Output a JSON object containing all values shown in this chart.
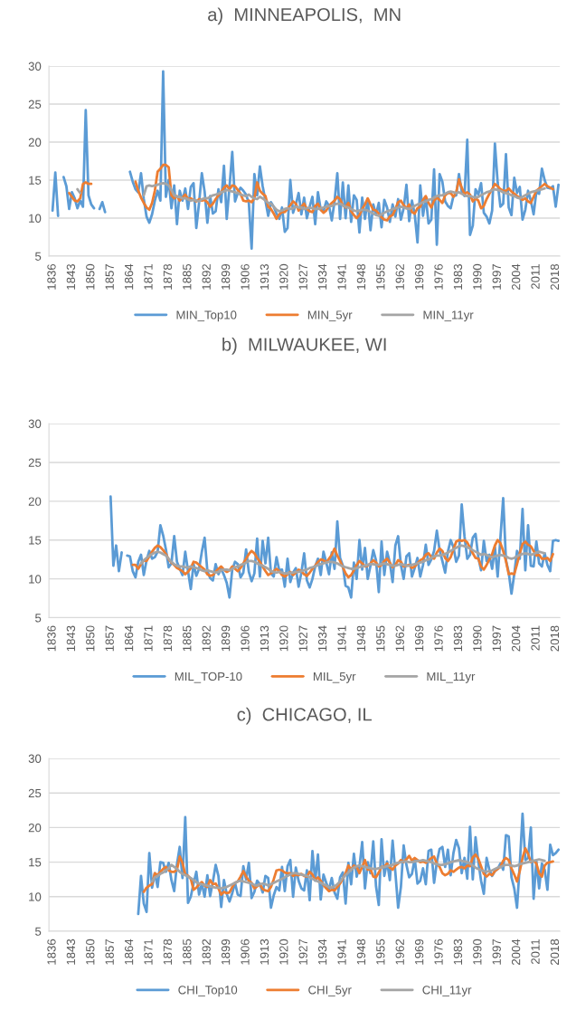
{
  "chart_data": [
    {
      "type": "line",
      "title": "a)  MINNEAPOLIS,  MN",
      "grid": "y",
      "legend": "bottom",
      "x": [
        1836,
        1837,
        1838,
        1839,
        1840,
        1841,
        1842,
        1843,
        1844,
        1845,
        1846,
        1847,
        1848,
        1849,
        1850,
        1851,
        1852,
        1853,
        1854,
        1855,
        1856,
        1857,
        1858,
        1859,
        1860,
        1861,
        1862,
        1863,
        1864,
        1865,
        1866,
        1867,
        1868,
        1869,
        1870,
        1871,
        1872,
        1873,
        1874,
        1875,
        1876,
        1877,
        1878,
        1879,
        1880,
        1881,
        1882,
        1883,
        1884,
        1885,
        1886,
        1887,
        1888,
        1889,
        1890,
        1891,
        1892,
        1893,
        1894,
        1895,
        1896,
        1897,
        1898,
        1899,
        1900,
        1901,
        1902,
        1903,
        1904,
        1905,
        1906,
        1907,
        1908,
        1909,
        1910,
        1911,
        1912,
        1913,
        1914,
        1915,
        1916,
        1917,
        1918,
        1919,
        1920,
        1921,
        1922,
        1923,
        1924,
        1925,
        1926,
        1927,
        1928,
        1929,
        1930,
        1931,
        1932,
        1933,
        1934,
        1935,
        1936,
        1937,
        1938,
        1939,
        1940,
        1941,
        1942,
        1943,
        1944,
        1945,
        1946,
        1947,
        1948,
        1949,
        1950,
        1951,
        1952,
        1953,
        1954,
        1955,
        1956,
        1957,
        1958,
        1959,
        1960,
        1961,
        1962,
        1963,
        1964,
        1965,
        1966,
        1967,
        1968,
        1969,
        1970,
        1971,
        1972,
        1973,
        1974,
        1975,
        1976,
        1977,
        1978,
        1979,
        1980,
        1981,
        1982,
        1983,
        1984,
        1985,
        1986,
        1987,
        1988,
        1989,
        1990,
        1991,
        1992,
        1993,
        1994,
        1995,
        1996,
        1997,
        1998,
        1999,
        2000,
        2001,
        2002,
        2003,
        2004,
        2005,
        2006,
        2007,
        2008,
        2009,
        2010,
        2011,
        2012,
        2013,
        2014,
        2015,
        2016,
        2017,
        2018,
        2019
      ],
      "xlim": [
        1834.7,
        2019.5
      ],
      "xticks": [
        1836,
        1843,
        1850,
        1857,
        1864,
        1871,
        1878,
        1885,
        1892,
        1899,
        1906,
        1913,
        1920,
        1927,
        1934,
        1941,
        1948,
        1955,
        1962,
        1969,
        1976,
        1983,
        1990,
        1997,
        2004,
        2011,
        2018
      ],
      "ylim": [
        5,
        30
      ],
      "yticks": [
        5,
        10,
        15,
        20,
        25,
        30
      ],
      "series": [
        {
          "name": "MIN_Top10",
          "color": "#5b9bd5",
          "values": [
            11,
            16,
            10.3,
            null,
            15.4,
            14.2,
            11.2,
            13.4,
            12.6,
            11.3,
            12.3,
            11.5,
            24.2,
            13.0,
            11.8,
            11.3,
            null,
            11.2,
            12.1,
            10.8,
            null,
            null,
            null,
            null,
            null,
            null,
            null,
            null,
            16.1,
            14.8,
            13.8,
            13.4,
            15.9,
            12.5,
            10.2,
            9.4,
            10.5,
            12.3,
            13.6,
            12.3,
            29.3,
            12.8,
            15.0,
            11.3,
            14.3,
            9.2,
            13.6,
            12.3,
            13.9,
            11.2,
            14.1,
            14.6,
            8.7,
            12.0,
            15.9,
            13.5,
            9.4,
            12.9,
            10.6,
            10.9,
            13.8,
            12.1,
            16.9,
            9.9,
            14.1,
            18.7,
            12.2,
            13.3,
            14.0,
            13.6,
            13.1,
            12.0,
            6.0,
            15.8,
            13.0,
            16.8,
            14.2,
            12.3,
            10.3,
            12.1,
            11.5,
            10.6,
            9.9,
            11.4,
            8.2,
            8.7,
            15.0,
            10.7,
            11.8,
            13.3,
            10.5,
            12.7,
            10.0,
            11.5,
            12.8,
            9.2,
            13.4,
            11.1,
            10.9,
            12.2,
            11.6,
            9.7,
            12.2,
            15.9,
            9.9,
            14.7,
            10.0,
            14.3,
            9.5,
            13.0,
            12.4,
            8.1,
            12.7,
            9.9,
            12.5,
            8.4,
            11.8,
            10.5,
            12.0,
            8.8,
            12.4,
            11.4,
            9.5,
            11.8,
            10.2,
            12.5,
            9.8,
            11.3,
            14.4,
            9.6,
            12.3,
            10.5,
            6.8,
            14.3,
            10.3,
            12.8,
            9.3,
            9.8,
            16.4,
            6.5,
            15.8,
            14.8,
            12.2,
            11.6,
            11.3,
            12.9,
            13.0,
            15.8,
            13.5,
            12.9,
            20.3,
            7.8,
            9.0,
            13.8,
            13.1,
            14.6,
            10.7,
            10.2,
            9.3,
            11.0,
            19.8,
            14.7,
            11.5,
            11.9,
            18.4,
            11.4,
            10.4,
            15.3,
            13.3,
            14.1,
            9.8,
            11.1,
            13.6,
            12.3,
            10.5,
            13.5,
            13.2,
            16.5,
            15.0,
            14.0,
            13.9,
            14.2,
            11.5,
            14.4
          ]
        },
        {
          "name": "MIN_5yr",
          "color": "#ed7d31",
          "values": [
            null,
            null,
            null,
            null,
            null,
            null,
            13.3,
            12.8,
            12.3,
            12.2,
            12.6,
            14.5,
            14.7,
            14.5,
            14.5,
            null,
            null,
            null,
            null,
            null,
            null,
            null,
            null,
            null,
            null,
            null,
            null,
            null,
            null,
            null,
            14.8,
            13.6,
            12.7,
            12.0,
            11.4,
            11.1,
            12.0,
            13.6,
            16.1,
            16.5,
            17.0,
            17.0,
            16.7,
            13.0,
            12.6,
            12.9,
            12.3,
            12.7,
            13.1,
            12.5,
            12.6,
            12.4,
            12.2,
            12.5,
            12.3,
            12.4,
            12.1,
            11.5,
            11.9,
            12.5,
            13.0,
            13.4,
            14.0,
            14.3,
            13.8,
            14.3,
            14.2,
            13.7,
            13.2,
            12.3,
            12.2,
            12.3,
            12.1,
            12.6,
            14.7,
            13.6,
            13.2,
            12.9,
            11.5,
            11.2,
            10.6,
            9.9,
            10.5,
            10.8,
            10.8,
            11.2,
            11.7,
            12.2,
            11.9,
            11.0,
            11.5,
            11.9,
            11.2,
            10.9,
            10.8,
            11.6,
            11.9,
            11.1,
            10.7,
            11.0,
            11.6,
            12.0,
            12.3,
            12.8,
            12.5,
            11.7,
            11.4,
            12.0,
            10.9,
            10.4,
            10.0,
            10.4,
            11.2,
            11.8,
            12.6,
            11.8,
            11.1,
            11.0,
            10.6,
            10.1,
            9.8,
            9.7,
            10.2,
            10.4,
            11.2,
            12.1,
            12.3,
            11.7,
            11.3,
            11.8,
            10.8,
            10.6,
            11.3,
            11.5,
            12.4,
            12.9,
            12.0,
            11.4,
            12.3,
            12.7,
            12.4,
            12.0,
            13.0,
            13.3,
            13.3,
            12.8,
            13.4,
            15.1,
            14.0,
            13.2,
            13.4,
            13.1,
            12.2,
            12.6,
            12.3,
            11.3,
            11.6,
            12.5,
            13.2,
            13.8,
            14.5,
            14.2,
            13.8,
            13.6,
            13.6,
            13.9,
            13.5,
            13.2,
            12.9,
            12.7,
            12.4,
            12.6,
            12.2,
            12.0,
            12.8,
            13.6,
            13.9,
            14.2,
            14.5,
            14.2,
            14.0,
            13.8,
            null,
            null
          ]
        },
        {
          "name": "MIN_11yr",
          "color": "#a5a5a5",
          "values": [
            null,
            null,
            null,
            null,
            null,
            null,
            null,
            null,
            null,
            13.8,
            13.3,
            null,
            null,
            null,
            null,
            null,
            null,
            null,
            null,
            null,
            null,
            null,
            null,
            null,
            null,
            null,
            null,
            null,
            null,
            null,
            null,
            null,
            null,
            13.0,
            14.2,
            14.3,
            14.2,
            14.3,
            14.4,
            14.5,
            14.6,
            14.5,
            14.3,
            13.7,
            13.0,
            12.8,
            12.8,
            12.6,
            12.6,
            12.5,
            12.3,
            12.4,
            12.3,
            12.2,
            12.5,
            12.6,
            12.6,
            12.8,
            13.0,
            13.1,
            13.2,
            13.4,
            13.5,
            13.7,
            13.6,
            13.5,
            13.4,
            13.3,
            13.1,
            13.0,
            12.9,
            13.1,
            12.8,
            12.6,
            12.5,
            12.8,
            12.6,
            12.3,
            12.0,
            11.9,
            11.5,
            11.1,
            10.9,
            11.0,
            11.2,
            11.3,
            11.2,
            11.3,
            11.5,
            11.4,
            11.4,
            11.2,
            11.3,
            11.4,
            11.3,
            11.2,
            11.2,
            11.3,
            11.4,
            11.5,
            11.6,
            11.6,
            11.8,
            11.9,
            11.9,
            11.7,
            11.5,
            11.4,
            11.2,
            11.0,
            10.9,
            11.0,
            11.1,
            11.1,
            11.0,
            10.8,
            10.6,
            10.4,
            10.3,
            10.5,
            10.7,
            10.9,
            11.0,
            11.2,
            11.3,
            11.4,
            11.5,
            11.4,
            11.3,
            11.2,
            11.4,
            11.6,
            11.8,
            11.9,
            12.1,
            12.2,
            12.4,
            12.5,
            12.7,
            12.9,
            13.0,
            13.0,
            13.2,
            13.4,
            13.5,
            13.4,
            13.3,
            13.4,
            13.2,
            13.0,
            12.9,
            12.9,
            12.8,
            12.7,
            12.8,
            13.0,
            13.2,
            13.4,
            13.5,
            13.7,
            13.8,
            13.7,
            13.6,
            13.4,
            13.3,
            13.2,
            13.0,
            12.9,
            12.7,
            12.6,
            12.8,
            13.0,
            13.2,
            13.4,
            13.5,
            13.6,
            13.7,
            13.8,
            13.9,
            null,
            null,
            null,
            null,
            null
          ]
        }
      ]
    },
    {
      "type": "line",
      "title": "b)  MILWAUKEE, WI",
      "grid": "y",
      "legend": "bottom",
      "x": [
        1857,
        1858,
        1859,
        1860,
        1861,
        1862,
        1863,
        1864,
        1865,
        1866,
        1867,
        1868,
        1869,
        1870,
        1871,
        1872,
        1873,
        1874,
        1875,
        1876,
        1877,
        1878,
        1879,
        1880,
        1881,
        1882,
        1883,
        1884,
        1885,
        1886,
        1887,
        1888,
        1889,
        1890,
        1891,
        1892,
        1893,
        1894,
        1895,
        1896,
        1897,
        1898,
        1899,
        1900,
        1901,
        1902,
        1903,
        1904,
        1905,
        1906,
        1907,
        1908,
        1909,
        1910,
        1911,
        1912,
        1913,
        1914,
        1915,
        1916,
        1917,
        1918,
        1919,
        1920,
        1921,
        1922,
        1923,
        1924,
        1925,
        1926,
        1927,
        1928,
        1929,
        1930,
        1931,
        1932,
        1933,
        1934,
        1935,
        1936,
        1937,
        1938,
        1939,
        1940,
        1941,
        1942,
        1943,
        1944,
        1945,
        1946,
        1947,
        1948,
        1949,
        1950,
        1951,
        1952,
        1953,
        1954,
        1955,
        1956,
        1957,
        1958,
        1959,
        1960,
        1961,
        1962,
        1963,
        1964,
        1965,
        1966,
        1967,
        1968,
        1969,
        1970,
        1971,
        1972,
        1973,
        1974,
        1975,
        1976,
        1977,
        1978,
        1979,
        1980,
        1981,
        1982,
        1983,
        1984,
        1985,
        1986,
        1987,
        1988,
        1989,
        1990,
        1991,
        1992,
        1993,
        1994,
        1995,
        1996,
        1997,
        1998,
        1999,
        2000,
        2001,
        2002,
        2003,
        2004,
        2005,
        2006,
        2007,
        2008,
        2009,
        2010,
        2011,
        2012,
        2013,
        2014,
        2015,
        2016,
        2017,
        2018,
        2019
      ],
      "xlim": [
        1834.7,
        2019.5
      ],
      "xticks": [
        1836,
        1843,
        1850,
        1857,
        1864,
        1871,
        1878,
        1885,
        1892,
        1899,
        1906,
        1913,
        1920,
        1927,
        1934,
        1941,
        1948,
        1955,
        1962,
        1969,
        1976,
        1983,
        1990,
        1997,
        2004,
        2011,
        2018
      ],
      "ylim": [
        5,
        30
      ],
      "yticks": [
        5,
        10,
        15,
        20,
        25,
        30
      ],
      "series": [
        {
          "name": "MIL_TOP-10",
          "color": "#5b9bd5",
          "values": [
            20.6,
            11.7,
            14.3,
            11.0,
            13.4,
            null,
            13.0,
            12.9,
            11.0,
            10.2,
            12.2,
            13.1,
            10.5,
            12.4,
            13.6,
            12.6,
            12.8,
            13.5,
            16.9,
            15.6,
            13.8,
            11.5,
            12.0,
            15.5,
            12.2,
            11.3,
            10.5,
            13.5,
            11.0,
            8.7,
            11.9,
            10.4,
            11.3,
            13.5,
            15.3,
            11.0,
            10.1,
            9.8,
            11.9,
            10.6,
            11.3,
            10.5,
            9.5,
            7.6,
            11.2,
            12.2,
            11.9,
            10.2,
            10.8,
            13.8,
            10.9,
            9.7,
            10.7,
            15.2,
            10.3,
            14.9,
            12.0,
            15.3,
            10.7,
            10.3,
            12.8,
            11.1,
            11.2,
            9.0,
            12.6,
            9.6,
            10.8,
            11.4,
            9.0,
            10.8,
            13.3,
            9.8,
            8.9,
            10.0,
            11.6,
            12.6,
            10.5,
            13.5,
            12.1,
            10.6,
            13.4,
            11.3,
            17.4,
            12.7,
            11.7,
            9.1,
            8.9,
            7.6,
            12.1,
            10.0,
            15.0,
            11.2,
            14.0,
            10.0,
            11.7,
            13.7,
            12.4,
            8.3,
            14.8,
            10.5,
            13.5,
            12.1,
            9.6,
            14.3,
            15.5,
            11.8,
            10.0,
            12.9,
            13.3,
            10.3,
            11.4,
            12.7,
            10.3,
            11.8,
            14.4,
            11.8,
            12.5,
            13.6,
            16.2,
            13.7,
            12.3,
            10.8,
            13.5,
            15.0,
            14.1,
            12.2,
            13.0,
            19.6,
            15.5,
            12.6,
            13.1,
            15.3,
            15.8,
            12.8,
            11.1,
            14.9,
            12.3,
            13.1,
            11.3,
            14.1,
            10.3,
            15.3,
            20.4,
            12.4,
            10.8,
            8.1,
            10.6,
            13.6,
            12.6,
            19.0,
            11.1,
            16.9,
            11.7,
            11.6,
            14.8,
            12.0,
            11.6,
            13.3,
            11.8,
            11.0,
            14.9,
            15.0,
            14.9
          ]
        },
        {
          "name": "MIL_5yr",
          "color": "#ed7d31",
          "values": [
            null,
            null,
            null,
            null,
            null,
            null,
            null,
            null,
            11.8,
            11.8,
            11.3,
            11.9,
            12.4,
            12.3,
            12.9,
            13.5,
            14.0,
            14.3,
            14.1,
            13.7,
            13.2,
            12.5,
            12.1,
            11.8,
            11.4,
            11.2,
            11.0,
            10.6,
            10.9,
            11.4,
            12.2,
            12.1,
            11.8,
            11.5,
            11.2,
            10.6,
            10.4,
            10.5,
            10.9,
            11.3,
            11.6,
            11.2,
            10.9,
            11.1,
            11.6,
            11.3,
            11.0,
            11.4,
            12.0,
            12.6,
            13.2,
            13.6,
            13.3,
            12.7,
            12.2,
            11.6,
            11.0,
            10.5,
            10.7,
            11.0,
            11.3,
            11.0,
            10.5,
            10.3,
            10.6,
            10.9,
            10.5,
            10.8,
            11.2,
            11.0,
            10.6,
            10.4,
            10.8,
            11.3,
            11.7,
            12.2,
            12.5,
            12.4,
            12.1,
            12.6,
            13.1,
            13.9,
            13.0,
            12.3,
            11.5,
            10.7,
            10.2,
            10.5,
            11.1,
            11.8,
            12.3,
            12.0,
            11.6,
            11.7,
            12.0,
            12.4,
            12.1,
            11.6,
            11.8,
            12.3,
            12.6,
            12.1,
            11.5,
            11.8,
            12.4,
            12.2,
            11.6,
            11.7,
            11.8,
            11.4,
            11.6,
            12.0,
            12.4,
            12.6,
            13.1,
            13.3,
            12.8,
            12.6,
            13.4,
            13.9,
            13.6,
            12.7,
            12.3,
            12.8,
            13.8,
            14.8,
            15.0,
            14.9,
            15.0,
            14.7,
            14.0,
            13.3,
            12.7,
            12.6,
            11.6,
            11.2,
            11.8,
            12.5,
            13.2,
            14.3,
            15.0,
            14.6,
            13.6,
            12.3,
            10.6,
            10.7,
            10.6,
            11.9,
            13.3,
            14.5,
            14.8,
            14.4,
            14.2,
            13.6,
            13.0,
            13.1,
            12.6,
            12.6,
            12.7,
            12.3,
            13.2,
            null,
            null
          ]
        },
        {
          "name": "MIL_11yr",
          "color": "#a5a5a5",
          "values": [
            null,
            null,
            null,
            null,
            null,
            null,
            null,
            null,
            null,
            null,
            null,
            12.0,
            12.4,
            12.7,
            13.0,
            13.2,
            13.4,
            13.5,
            13.4,
            13.2,
            13.0,
            12.6,
            12.2,
            11.9,
            11.7,
            11.6,
            11.6,
            11.5,
            11.5,
            11.6,
            11.5,
            11.4,
            11.3,
            11.1,
            11.0,
            11.1,
            11.0,
            10.9,
            10.8,
            10.9,
            11.1,
            11.2,
            11.2,
            11.1,
            11.3,
            11.5,
            11.6,
            11.8,
            11.9,
            12.1,
            12.3,
            12.3,
            12.2,
            12.0,
            11.8,
            11.7,
            11.5,
            11.3,
            11.0,
            10.9,
            10.8,
            10.9,
            10.8,
            10.7,
            10.7,
            10.8,
            10.8,
            10.9,
            10.9,
            11.0,
            11.1,
            11.2,
            11.4,
            11.5,
            11.6,
            11.8,
            11.9,
            12.0,
            12.1,
            12.2,
            12.2,
            12.1,
            12.0,
            11.8,
            11.6,
            11.5,
            11.4,
            11.3,
            11.3,
            11.4,
            11.5,
            11.6,
            11.7,
            11.8,
            11.9,
            11.9,
            11.8,
            11.8,
            11.9,
            12.0,
            11.9,
            11.8,
            11.7,
            11.7,
            11.8,
            11.9,
            11.8,
            11.7,
            11.7,
            11.8,
            11.9,
            12.0,
            12.1,
            12.2,
            12.4,
            12.5,
            12.7,
            12.9,
            13.0,
            13.0,
            13.1,
            13.2,
            13.4,
            13.6,
            13.8,
            14.0,
            14.2,
            14.3,
            14.2,
            14.1,
            13.9,
            13.7,
            13.5,
            13.3,
            13.1,
            13.2,
            13.1,
            12.9,
            12.8,
            12.9,
            13.0,
            13.1,
            13.0,
            12.9,
            12.7,
            12.6,
            12.7,
            12.9,
            13.1,
            13.2,
            13.3,
            13.2,
            13.1,
            13.2,
            13.4,
            13.5,
            13.4,
            13.3,
            null,
            null,
            null,
            null,
            null
          ]
        }
      ]
    },
    {
      "type": "line",
      "title": "c)  CHICAGO, IL",
      "grid": "y",
      "legend": "bottom",
      "x": [
        1867,
        1868,
        1869,
        1870,
        1871,
        1872,
        1873,
        1874,
        1875,
        1876,
        1877,
        1878,
        1879,
        1880,
        1881,
        1882,
        1883,
        1884,
        1885,
        1886,
        1887,
        1888,
        1889,
        1890,
        1891,
        1892,
        1893,
        1894,
        1895,
        1896,
        1897,
        1898,
        1899,
        1900,
        1901,
        1902,
        1903,
        1904,
        1905,
        1906,
        1907,
        1908,
        1909,
        1910,
        1911,
        1912,
        1913,
        1914,
        1915,
        1916,
        1917,
        1918,
        1919,
        1920,
        1921,
        1922,
        1923,
        1924,
        1925,
        1926,
        1927,
        1928,
        1929,
        1930,
        1931,
        1932,
        1933,
        1934,
        1935,
        1936,
        1937,
        1938,
        1939,
        1940,
        1941,
        1942,
        1943,
        1944,
        1945,
        1946,
        1947,
        1948,
        1949,
        1950,
        1951,
        1952,
        1953,
        1954,
        1955,
        1956,
        1957,
        1958,
        1959,
        1960,
        1961,
        1962,
        1963,
        1964,
        1965,
        1966,
        1967,
        1968,
        1969,
        1970,
        1971,
        1972,
        1973,
        1974,
        1975,
        1976,
        1977,
        1978,
        1979,
        1980,
        1981,
        1982,
        1983,
        1984,
        1985,
        1986,
        1987,
        1988,
        1989,
        1990,
        1991,
        1992,
        1993,
        1994,
        1995,
        1996,
        1997,
        1998,
        1999,
        2000,
        2001,
        2002,
        2003,
        2004,
        2005,
        2006,
        2007,
        2008,
        2009,
        2010,
        2011,
        2012,
        2013,
        2014,
        2015,
        2016,
        2017,
        2018,
        2019
      ],
      "xlim": [
        1834.7,
        2019.5
      ],
      "xticks": [
        1836,
        1843,
        1850,
        1857,
        1864,
        1871,
        1878,
        1885,
        1892,
        1899,
        1906,
        1913,
        1920,
        1927,
        1934,
        1941,
        1948,
        1955,
        1962,
        1969,
        1976,
        1983,
        1990,
        1997,
        2004,
        2011,
        2018
      ],
      "ylim": [
        5,
        30
      ],
      "yticks": [
        5,
        10,
        15,
        20,
        25,
        30
      ],
      "series": [
        {
          "name": "CHI_Top10",
          "color": "#5b9bd5",
          "values": [
            7.5,
            13.0,
            9.0,
            7.8,
            16.3,
            11.3,
            13.4,
            11.4,
            15.0,
            14.9,
            13.6,
            14.9,
            12.4,
            10.8,
            14.7,
            17.2,
            12.7,
            21.5,
            9.1,
            10.0,
            11.9,
            13.6,
            10.3,
            11.9,
            10.0,
            13.1,
            10.1,
            12.2,
            14.6,
            13.0,
            8.5,
            12.4,
            10.4,
            9.3,
            10.5,
            12.0,
            10.3,
            10.1,
            14.4,
            12.5,
            14.9,
            9.8,
            10.7,
            12.3,
            11.8,
            10.6,
            13.0,
            12.7,
            8.4,
            10.2,
            11.4,
            10.9,
            14.3,
            10.8,
            14.4,
            15.3,
            10.0,
            14.2,
            12.3,
            11.2,
            10.9,
            13.8,
            9.5,
            16.6,
            12.3,
            16.1,
            9.6,
            13.2,
            12.0,
            11.0,
            12.7,
            10.6,
            9.7,
            12.8,
            13.5,
            9.0,
            14.9,
            11.8,
            16.2,
            12.9,
            14.3,
            17.9,
            11.2,
            15.0,
            13.4,
            18.0,
            11.5,
            8.8,
            18.3,
            13.0,
            15.1,
            12.4,
            18.1,
            13.5,
            8.4,
            11.4,
            17.4,
            14.6,
            12.8,
            13.3,
            15.5,
            11.9,
            12.3,
            14.1,
            11.8,
            16.6,
            16.8,
            12.0,
            15.0,
            16.9,
            17.2,
            14.3,
            16.8,
            13.1,
            16.3,
            18.2,
            17.0,
            13.4,
            15.6,
            12.6,
            20.1,
            12.5,
            18.6,
            15.1,
            12.3,
            10.4,
            15.6,
            13.9,
            13.0,
            13.7,
            14.0,
            14.8,
            13.9,
            18.9,
            18.7,
            12.8,
            11.2,
            8.4,
            14.6,
            22.0,
            15.3,
            15.6,
            20.0,
            9.7,
            15.1,
            11.2,
            14.8,
            13.9,
            11.0,
            17.5,
            16.0,
            16.3,
            16.8
          ]
        },
        {
          "name": "CHI_5yr",
          "color": "#ed7d31",
          "values": [
            null,
            null,
            10.7,
            11.3,
            11.6,
            11.8,
            13.4,
            13.1,
            13.6,
            14.0,
            14.3,
            13.8,
            13.6,
            13.6,
            13.9,
            15.8,
            14.9,
            13.2,
            13.0,
            12.6,
            11.0,
            11.3,
            11.8,
            12.1,
            11.6,
            11.4,
            12.4,
            11.8,
            11.9,
            11.2,
            10.3,
            10.7,
            10.5,
            10.6,
            11.4,
            12.0,
            12.2,
            12.9,
            13.7,
            12.9,
            12.3,
            12.0,
            11.2,
            11.5,
            11.8,
            11.1,
            10.9,
            10.8,
            11.4,
            12.5,
            13.8,
            13.9,
            13.8,
            13.5,
            13.4,
            13.4,
            13.0,
            13.2,
            13.1,
            13.3,
            13.0,
            12.9,
            13.6,
            13.2,
            12.4,
            12.8,
            12.3,
            11.7,
            11.2,
            10.8,
            11.0,
            10.9,
            11.4,
            11.9,
            12.6,
            13.4,
            14.5,
            13.9,
            14.5,
            14.3,
            13.4,
            14.3,
            15.3,
            13.9,
            14.0,
            12.9,
            12.8,
            13.5,
            14.3,
            14.3,
            14.8,
            14.2,
            13.9,
            14.5,
            14.8,
            15.3,
            15.0,
            15.4,
            15.9,
            15.2,
            15.6,
            15.3,
            15.0,
            15.1,
            14.9,
            15.2,
            15.6,
            15.8,
            14.8,
            14.3,
            13.4,
            13.1,
            13.3,
            13.8,
            13.6,
            13.9,
            14.2,
            14.3,
            14.1,
            14.5,
            14.4,
            15.7,
            16.1,
            15.5,
            14.4,
            13.3,
            12.9,
            13.3,
            13.1,
            13.7,
            14.0,
            14.3,
            15.2,
            15.6,
            15.3,
            14.1,
            13.2,
            12.2,
            13.7,
            15.6,
            17.0,
            16.2,
            15.0,
            15.2,
            14.8,
            13.4,
            12.9,
            14.5,
            14.9,
            15.0,
            15.1,
            null,
            null
          ]
        },
        {
          "name": "CHI_11yr",
          "color": "#a5a5a5",
          "values": [
            null,
            null,
            null,
            null,
            null,
            12.2,
            12.8,
            13.0,
            13.3,
            13.5,
            13.8,
            14.1,
            14.6,
            14.3,
            14.0,
            13.6,
            13.3,
            13.1,
            12.9,
            12.7,
            12.4,
            12.1,
            11.9,
            11.8,
            11.7,
            11.6,
            11.5,
            11.4,
            11.3,
            11.3,
            11.2,
            11.3,
            11.4,
            11.6,
            11.8,
            12.0,
            12.2,
            12.3,
            12.2,
            12.1,
            12.0,
            11.9,
            11.7,
            11.6,
            11.8,
            11.9,
            11.8,
            11.6,
            11.8,
            12.0,
            12.2,
            12.4,
            12.6,
            12.8,
            13.0,
            13.2,
            13.4,
            13.4,
            13.3,
            13.2,
            13.1,
            13.0,
            12.8,
            12.6,
            12.4,
            12.2,
            12.0,
            11.8,
            11.6,
            11.4,
            11.3,
            11.5,
            11.8,
            12.2,
            12.7,
            13.1,
            13.5,
            13.9,
            14.2,
            14.4,
            14.5,
            14.4,
            14.3,
            14.2,
            14.1,
            14.0,
            14.0,
            14.1,
            14.2,
            14.3,
            14.4,
            14.5,
            14.6,
            14.8,
            14.9,
            15.0,
            15.1,
            15.1,
            15.0,
            15.0,
            15.1,
            15.2,
            15.2,
            15.3,
            15.2,
            15.1,
            15.0,
            14.8,
            14.7,
            14.6,
            14.6,
            14.7,
            14.8,
            15.0,
            15.1,
            15.2,
            15.3,
            15.2,
            15.1,
            15.0,
            14.8,
            14.5,
            14.2,
            14.0,
            13.8,
            13.7,
            13.6,
            13.7,
            13.8,
            14.0,
            14.2,
            14.3,
            14.5,
            14.6,
            14.6,
            14.5,
            14.4,
            14.5,
            14.7,
            14.8,
            14.9,
            15.0,
            15.1,
            15.2,
            15.3,
            15.4,
            15.3,
            15.2,
            null,
            null,
            null,
            null,
            null
          ]
        }
      ]
    }
  ]
}
